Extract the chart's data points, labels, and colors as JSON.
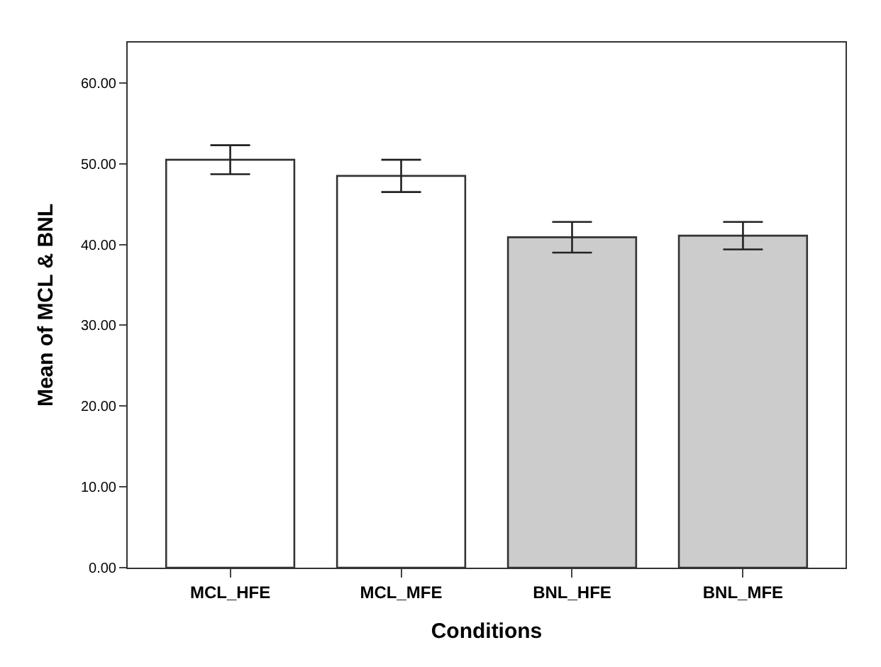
{
  "chart_data": {
    "type": "bar",
    "xlabel": "Conditions",
    "ylabel": "Mean of MCL & BNL",
    "categories": [
      "MCL_HFE",
      "MCL_MFE",
      "BNL_HFE",
      "BNL_MFE"
    ],
    "values": [
      50.5,
      48.5,
      40.9,
      41.1
    ],
    "colors": [
      "#ffffff",
      "#ffffff",
      "#cccccc",
      "#cccccc"
    ],
    "errors": [
      [
        48.7,
        52.3
      ],
      [
        46.5,
        50.5
      ],
      [
        39.0,
        42.8
      ],
      [
        39.4,
        42.8
      ]
    ],
    "ylim": [
      0,
      65
    ],
    "yticks": [
      {
        "value": 0,
        "label": "0.00"
      },
      {
        "value": 10,
        "label": "10.00"
      },
      {
        "value": 20,
        "label": "20.00"
      },
      {
        "value": 30,
        "label": "30.00"
      },
      {
        "value": 40,
        "label": "40.00"
      },
      {
        "value": 50,
        "label": "50.00"
      },
      {
        "value": 60,
        "label": "60.00"
      }
    ]
  }
}
